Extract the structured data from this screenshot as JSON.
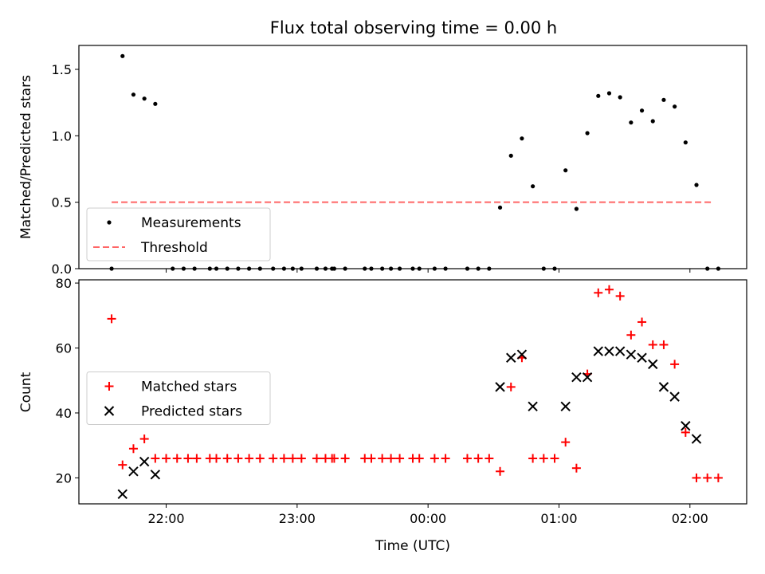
{
  "chart_data": [
    {
      "type": "scatter",
      "title": "Flux total observing time = 0.00 h",
      "xlabel": "",
      "ylabel": "Matched/Predicted stars",
      "ylim": [
        0,
        1.68
      ],
      "yticks": [
        "0.0",
        "0.5",
        "1.0",
        "1.5"
      ],
      "xlim": [
        "21:20",
        "02:26"
      ],
      "xticks": [
        "22:00",
        "23:00",
        "00:00",
        "01:00",
        "02:00"
      ],
      "show_xticklabels": false,
      "legend": {
        "placement": "lower-left",
        "entries": [
          "Measurements",
          "Threshold"
        ]
      },
      "threshold": {
        "name": "Threshold",
        "value": 0.5,
        "x_start": "21:35",
        "x_end": "02:10",
        "color": "#ff6666",
        "style": "dashed"
      },
      "series": [
        {
          "name": "Measurements",
          "marker": "dot",
          "color": "#000000",
          "points": [
            {
              "x": "21:35",
              "y": 0.0
            },
            {
              "x": "21:40",
              "y": 1.6
            },
            {
              "x": "21:45",
              "y": 1.31
            },
            {
              "x": "21:50",
              "y": 1.28
            },
            {
              "x": "21:55",
              "y": 1.24
            },
            {
              "x": "22:03",
              "y": 0.0
            },
            {
              "x": "22:08",
              "y": 0.0
            },
            {
              "x": "22:13",
              "y": 0.0
            },
            {
              "x": "22:20",
              "y": 0.0
            },
            {
              "x": "22:23",
              "y": 0.0
            },
            {
              "x": "22:28",
              "y": 0.0
            },
            {
              "x": "22:33",
              "y": 0.0
            },
            {
              "x": "22:38",
              "y": 0.0
            },
            {
              "x": "22:43",
              "y": 0.0
            },
            {
              "x": "22:49",
              "y": 0.0
            },
            {
              "x": "22:54",
              "y": 0.0
            },
            {
              "x": "22:58",
              "y": 0.0
            },
            {
              "x": "23:02",
              "y": 0.0
            },
            {
              "x": "23:09",
              "y": 0.0
            },
            {
              "x": "23:13",
              "y": 0.0
            },
            {
              "x": "23:16",
              "y": 0.0
            },
            {
              "x": "23:17",
              "y": 0.0
            },
            {
              "x": "23:22",
              "y": 0.0
            },
            {
              "x": "23:31",
              "y": 0.0
            },
            {
              "x": "23:34",
              "y": 0.0
            },
            {
              "x": "23:39",
              "y": 0.0
            },
            {
              "x": "23:43",
              "y": 0.0
            },
            {
              "x": "23:47",
              "y": 0.0
            },
            {
              "x": "23:53",
              "y": 0.0
            },
            {
              "x": "23:56",
              "y": 0.0
            },
            {
              "x": "00:03",
              "y": 0.0
            },
            {
              "x": "00:08",
              "y": 0.0
            },
            {
              "x": "00:18",
              "y": 0.0
            },
            {
              "x": "00:23",
              "y": 0.0
            },
            {
              "x": "00:28",
              "y": 0.0
            },
            {
              "x": "00:33",
              "y": 0.46
            },
            {
              "x": "00:38",
              "y": 0.85
            },
            {
              "x": "00:43",
              "y": 0.98
            },
            {
              "x": "00:48",
              "y": 0.62
            },
            {
              "x": "00:53",
              "y": 0.0
            },
            {
              "x": "00:58",
              "y": 0.0
            },
            {
              "x": "01:03",
              "y": 0.74
            },
            {
              "x": "01:08",
              "y": 0.45
            },
            {
              "x": "01:13",
              "y": 1.02
            },
            {
              "x": "01:18",
              "y": 1.3
            },
            {
              "x": "01:23",
              "y": 1.32
            },
            {
              "x": "01:28",
              "y": 1.29
            },
            {
              "x": "01:33",
              "y": 1.1
            },
            {
              "x": "01:38",
              "y": 1.19
            },
            {
              "x": "01:43",
              "y": 1.11
            },
            {
              "x": "01:48",
              "y": 1.27
            },
            {
              "x": "01:53",
              "y": 1.22
            },
            {
              "x": "01:58",
              "y": 0.95
            },
            {
              "x": "02:03",
              "y": 0.63
            },
            {
              "x": "02:08",
              "y": 0.0
            },
            {
              "x": "02:13",
              "y": 0.0
            }
          ]
        }
      ]
    },
    {
      "type": "scatter",
      "title": "",
      "xlabel": "Time (UTC)",
      "ylabel": "Count",
      "ylim": [
        12,
        81
      ],
      "yticks": [
        "20",
        "40",
        "60",
        "80"
      ],
      "xlim": [
        "21:20",
        "02:26"
      ],
      "xticks": [
        "22:00",
        "23:00",
        "00:00",
        "01:00",
        "02:00"
      ],
      "show_xticklabels": true,
      "legend": {
        "placement": "center-left",
        "entries": [
          "Matched stars",
          "Predicted stars"
        ]
      },
      "series": [
        {
          "name": "Matched stars",
          "marker": "plus",
          "color": "#ff0000",
          "points": [
            {
              "x": "21:35",
              "y": 69
            },
            {
              "x": "21:40",
              "y": 24
            },
            {
              "x": "21:45",
              "y": 29
            },
            {
              "x": "21:50",
              "y": 32
            },
            {
              "x": "21:55",
              "y": 26
            },
            {
              "x": "22:00",
              "y": 26
            },
            {
              "x": "22:05",
              "y": 26
            },
            {
              "x": "22:10",
              "y": 26
            },
            {
              "x": "22:14",
              "y": 26
            },
            {
              "x": "22:20",
              "y": 26
            },
            {
              "x": "22:23",
              "y": 26
            },
            {
              "x": "22:28",
              "y": 26
            },
            {
              "x": "22:33",
              "y": 26
            },
            {
              "x": "22:38",
              "y": 26
            },
            {
              "x": "22:43",
              "y": 26
            },
            {
              "x": "22:49",
              "y": 26
            },
            {
              "x": "22:54",
              "y": 26
            },
            {
              "x": "22:58",
              "y": 26
            },
            {
              "x": "23:02",
              "y": 26
            },
            {
              "x": "23:09",
              "y": 26
            },
            {
              "x": "23:13",
              "y": 26
            },
            {
              "x": "23:16",
              "y": 26
            },
            {
              "x": "23:17",
              "y": 26
            },
            {
              "x": "23:22",
              "y": 26
            },
            {
              "x": "23:31",
              "y": 26
            },
            {
              "x": "23:34",
              "y": 26
            },
            {
              "x": "23:39",
              "y": 26
            },
            {
              "x": "23:43",
              "y": 26
            },
            {
              "x": "23:47",
              "y": 26
            },
            {
              "x": "23:53",
              "y": 26
            },
            {
              "x": "23:56",
              "y": 26
            },
            {
              "x": "00:03",
              "y": 26
            },
            {
              "x": "00:08",
              "y": 26
            },
            {
              "x": "00:18",
              "y": 26
            },
            {
              "x": "00:23",
              "y": 26
            },
            {
              "x": "00:28",
              "y": 26
            },
            {
              "x": "00:33",
              "y": 22
            },
            {
              "x": "00:38",
              "y": 48
            },
            {
              "x": "00:43",
              "y": 57
            },
            {
              "x": "00:48",
              "y": 26
            },
            {
              "x": "00:53",
              "y": 26
            },
            {
              "x": "00:58",
              "y": 26
            },
            {
              "x": "01:03",
              "y": 31
            },
            {
              "x": "01:08",
              "y": 23
            },
            {
              "x": "01:13",
              "y": 52
            },
            {
              "x": "01:18",
              "y": 77
            },
            {
              "x": "01:23",
              "y": 78
            },
            {
              "x": "01:28",
              "y": 76
            },
            {
              "x": "01:33",
              "y": 64
            },
            {
              "x": "01:38",
              "y": 68
            },
            {
              "x": "01:43",
              "y": 61
            },
            {
              "x": "01:48",
              "y": 61
            },
            {
              "x": "01:53",
              "y": 55
            },
            {
              "x": "01:58",
              "y": 34
            },
            {
              "x": "02:03",
              "y": 20
            },
            {
              "x": "02:08",
              "y": 20
            },
            {
              "x": "02:13",
              "y": 20
            }
          ]
        },
        {
          "name": "Predicted stars",
          "marker": "x",
          "color": "#000000",
          "points": [
            {
              "x": "21:40",
              "y": 15
            },
            {
              "x": "21:45",
              "y": 22
            },
            {
              "x": "21:50",
              "y": 25
            },
            {
              "x": "21:55",
              "y": 21
            },
            {
              "x": "00:33",
              "y": 48
            },
            {
              "x": "00:38",
              "y": 57
            },
            {
              "x": "00:43",
              "y": 58
            },
            {
              "x": "00:48",
              "y": 42
            },
            {
              "x": "01:03",
              "y": 42
            },
            {
              "x": "01:08",
              "y": 51
            },
            {
              "x": "01:13",
              "y": 51
            },
            {
              "x": "01:18",
              "y": 59
            },
            {
              "x": "01:23",
              "y": 59
            },
            {
              "x": "01:28",
              "y": 59
            },
            {
              "x": "01:33",
              "y": 58
            },
            {
              "x": "01:38",
              "y": 57
            },
            {
              "x": "01:43",
              "y": 55
            },
            {
              "x": "01:48",
              "y": 48
            },
            {
              "x": "01:53",
              "y": 45
            },
            {
              "x": "01:58",
              "y": 36
            },
            {
              "x": "02:03",
              "y": 32
            }
          ]
        }
      ]
    }
  ]
}
